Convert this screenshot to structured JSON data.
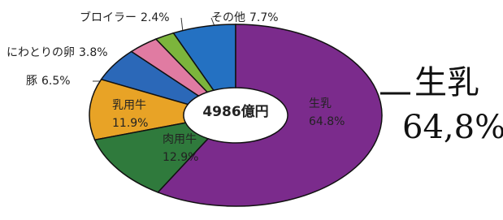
{
  "chart_data": {
    "type": "donut",
    "center_label": "4986億円",
    "categories": [
      "生乳",
      "肉用牛",
      "乳用牛",
      "豚",
      "にわとりの卵",
      "ブロイラー",
      "その他"
    ],
    "values": [
      64.8,
      12.9,
      11.9,
      6.5,
      3.8,
      2.4,
      7.7
    ],
    "value_labels": [
      "64.8%",
      "12.9%",
      "11.9%",
      "6.5%",
      "3.8%",
      "2.4%",
      "7.7%"
    ],
    "colors": [
      "#7b2b8c",
      "#2f7a3c",
      "#e8a326",
      "#2b68b8",
      "#e07ba2",
      "#7cb53c",
      "#2471c2"
    ],
    "annotation": [
      "生乳",
      "64,8%"
    ]
  }
}
